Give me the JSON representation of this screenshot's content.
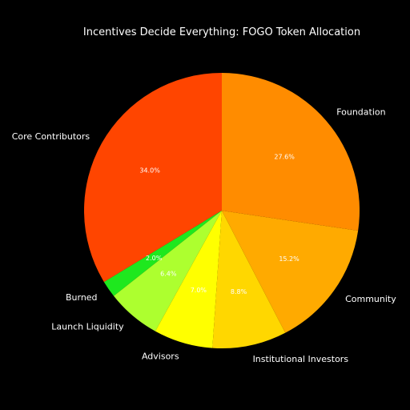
{
  "chart_data": {
    "type": "pie",
    "title": "Incentives Decide Everything: FOGO Token Allocation",
    "slices": [
      {
        "label": "Core Contributors",
        "value": 34.0,
        "pct_label": "34.0%",
        "color": "#ff4500"
      },
      {
        "label": "Burned",
        "value": 2.0,
        "pct_label": "2.0%",
        "color": "#1ee81e"
      },
      {
        "label": "Launch Liquidity",
        "value": 6.4,
        "pct_label": "6.4%",
        "color": "#adff2f"
      },
      {
        "label": "Advisors",
        "value": 7.0,
        "pct_label": "7.0%",
        "color": "#ffff00"
      },
      {
        "label": "Institutional Investors",
        "value": 8.8,
        "pct_label": "8.8%",
        "color": "#ffd700"
      },
      {
        "label": "Community",
        "value": 15.2,
        "pct_label": "15.2%",
        "color": "#ffaa00"
      },
      {
        "label": "Foundation",
        "value": 27.6,
        "pct_label": "27.6%",
        "color": "#ff8c00"
      }
    ],
    "start_angle": 90,
    "direction": "counterclockwise",
    "legend": "none"
  }
}
